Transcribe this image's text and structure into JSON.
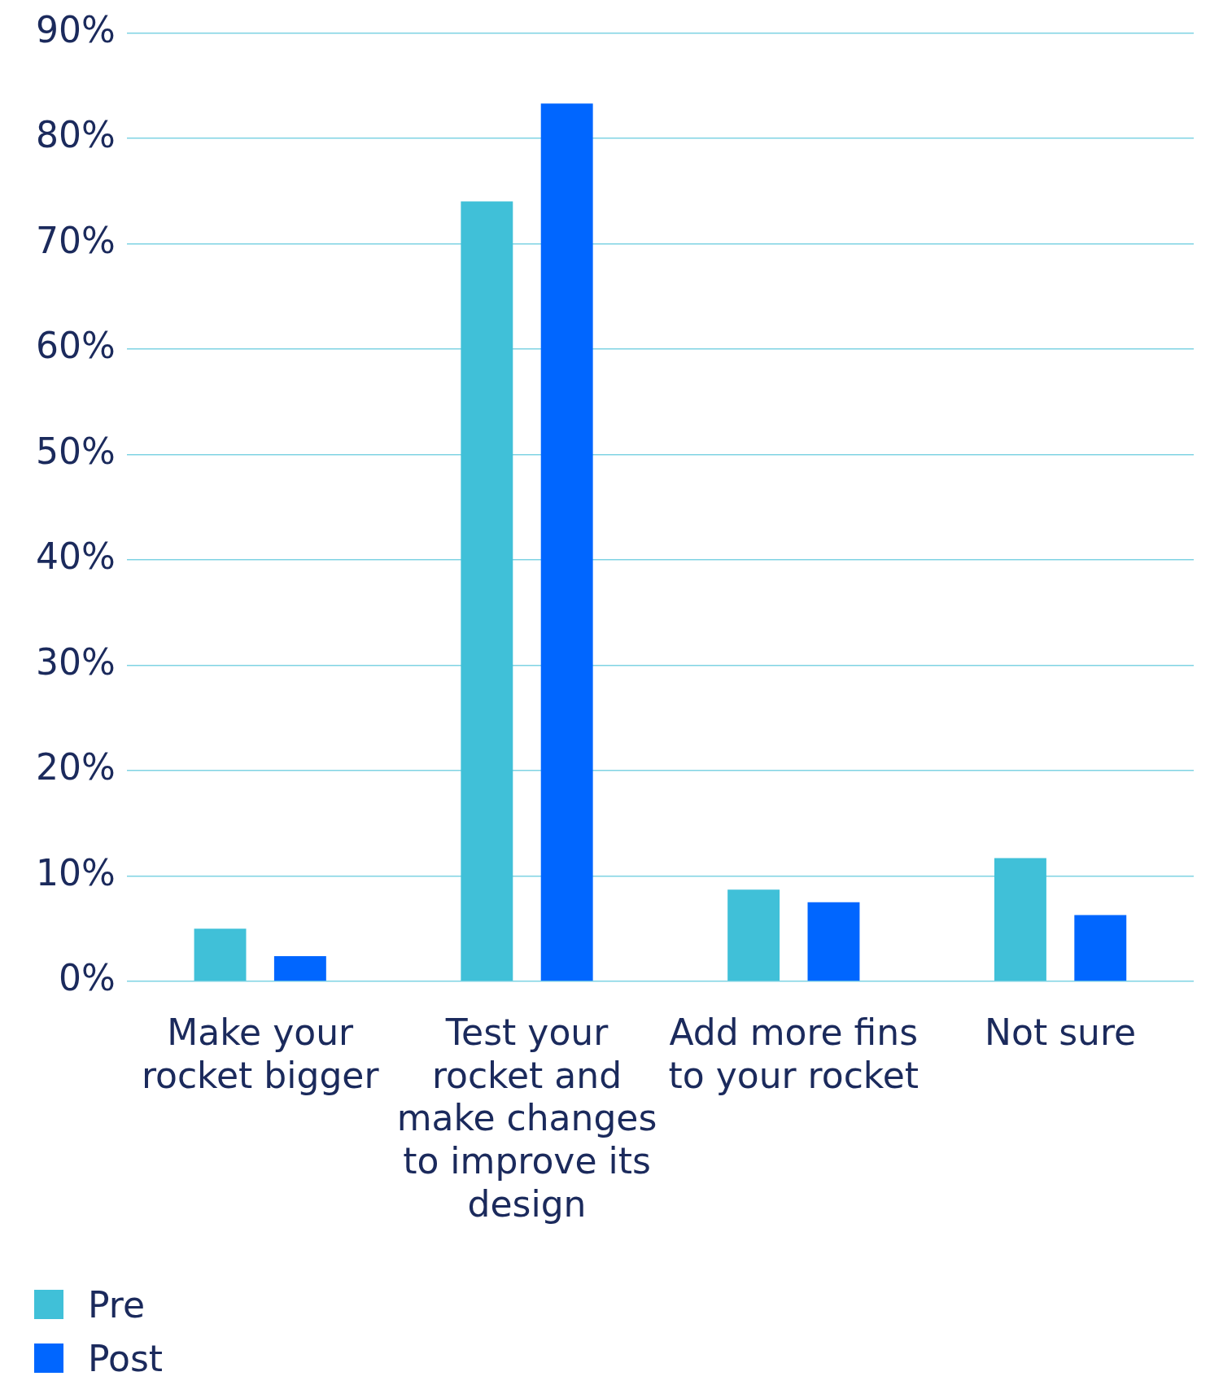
{
  "chart_data": {
    "type": "bar",
    "categories": [
      "Make your rocket bigger",
      "Test your rocket and make changes to improve its design",
      "Add more fins to your rocket",
      "Not sure"
    ],
    "series": [
      {
        "name": "Pre",
        "color": "#40c0d8",
        "values": [
          5.0,
          74.0,
          8.7,
          11.7
        ]
      },
      {
        "name": "Post",
        "color": "#0066ff",
        "values": [
          2.4,
          83.3,
          7.5,
          6.3
        ]
      }
    ],
    "ylim": [
      0,
      90
    ],
    "yticks": [
      {
        "value": 0,
        "label": "0%"
      },
      {
        "value": 10,
        "label": "10%"
      },
      {
        "value": 20,
        "label": "20%"
      },
      {
        "value": 30,
        "label": "30%"
      },
      {
        "value": 40,
        "label": "40%"
      },
      {
        "value": 50,
        "label": "50%"
      },
      {
        "value": 60,
        "label": "60%"
      },
      {
        "value": 70,
        "label": "70%"
      },
      {
        "value": 80,
        "label": "80%"
      },
      {
        "value": 90,
        "label": "90%"
      }
    ],
    "grid": "y",
    "legend": "bottom left"
  }
}
